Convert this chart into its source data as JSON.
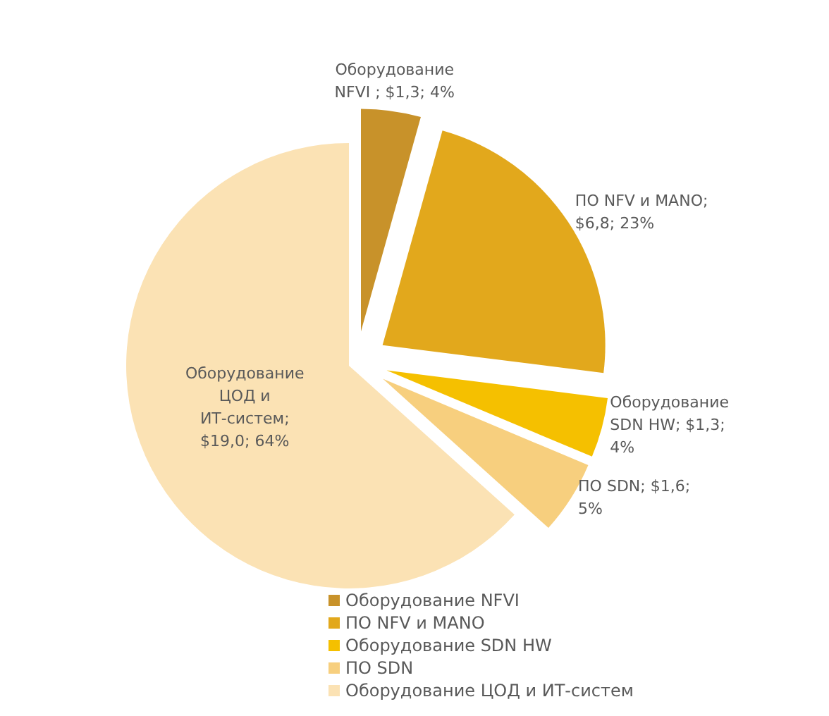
{
  "chart_data": {
    "type": "pie",
    "categories": [
      "Оборудование NFVI",
      "ПО NFV и MANO",
      "Оборудование SDN HW",
      "ПО SDN",
      "Оборудование ЦОД и ИТ-систем"
    ],
    "values": [
      1.3,
      6.8,
      1.3,
      1.6,
      19.0
    ],
    "colors": [
      "#c8922a",
      "#e2a81c",
      "#f5c000",
      "#f7cf7e",
      "#fbe2b4"
    ],
    "value_labels": [
      "Оборудование NFVI ; $1,3; 4%",
      "ПО NFV и MANO; $6,8; 23%",
      "Оборудование SDN HW; $1,3; 4%",
      "ПО SDN; $1,6; 5%",
      "Оборудование ЦОД и ИТ-систем; $19,0; 64%"
    ],
    "legend": "bottom"
  }
}
